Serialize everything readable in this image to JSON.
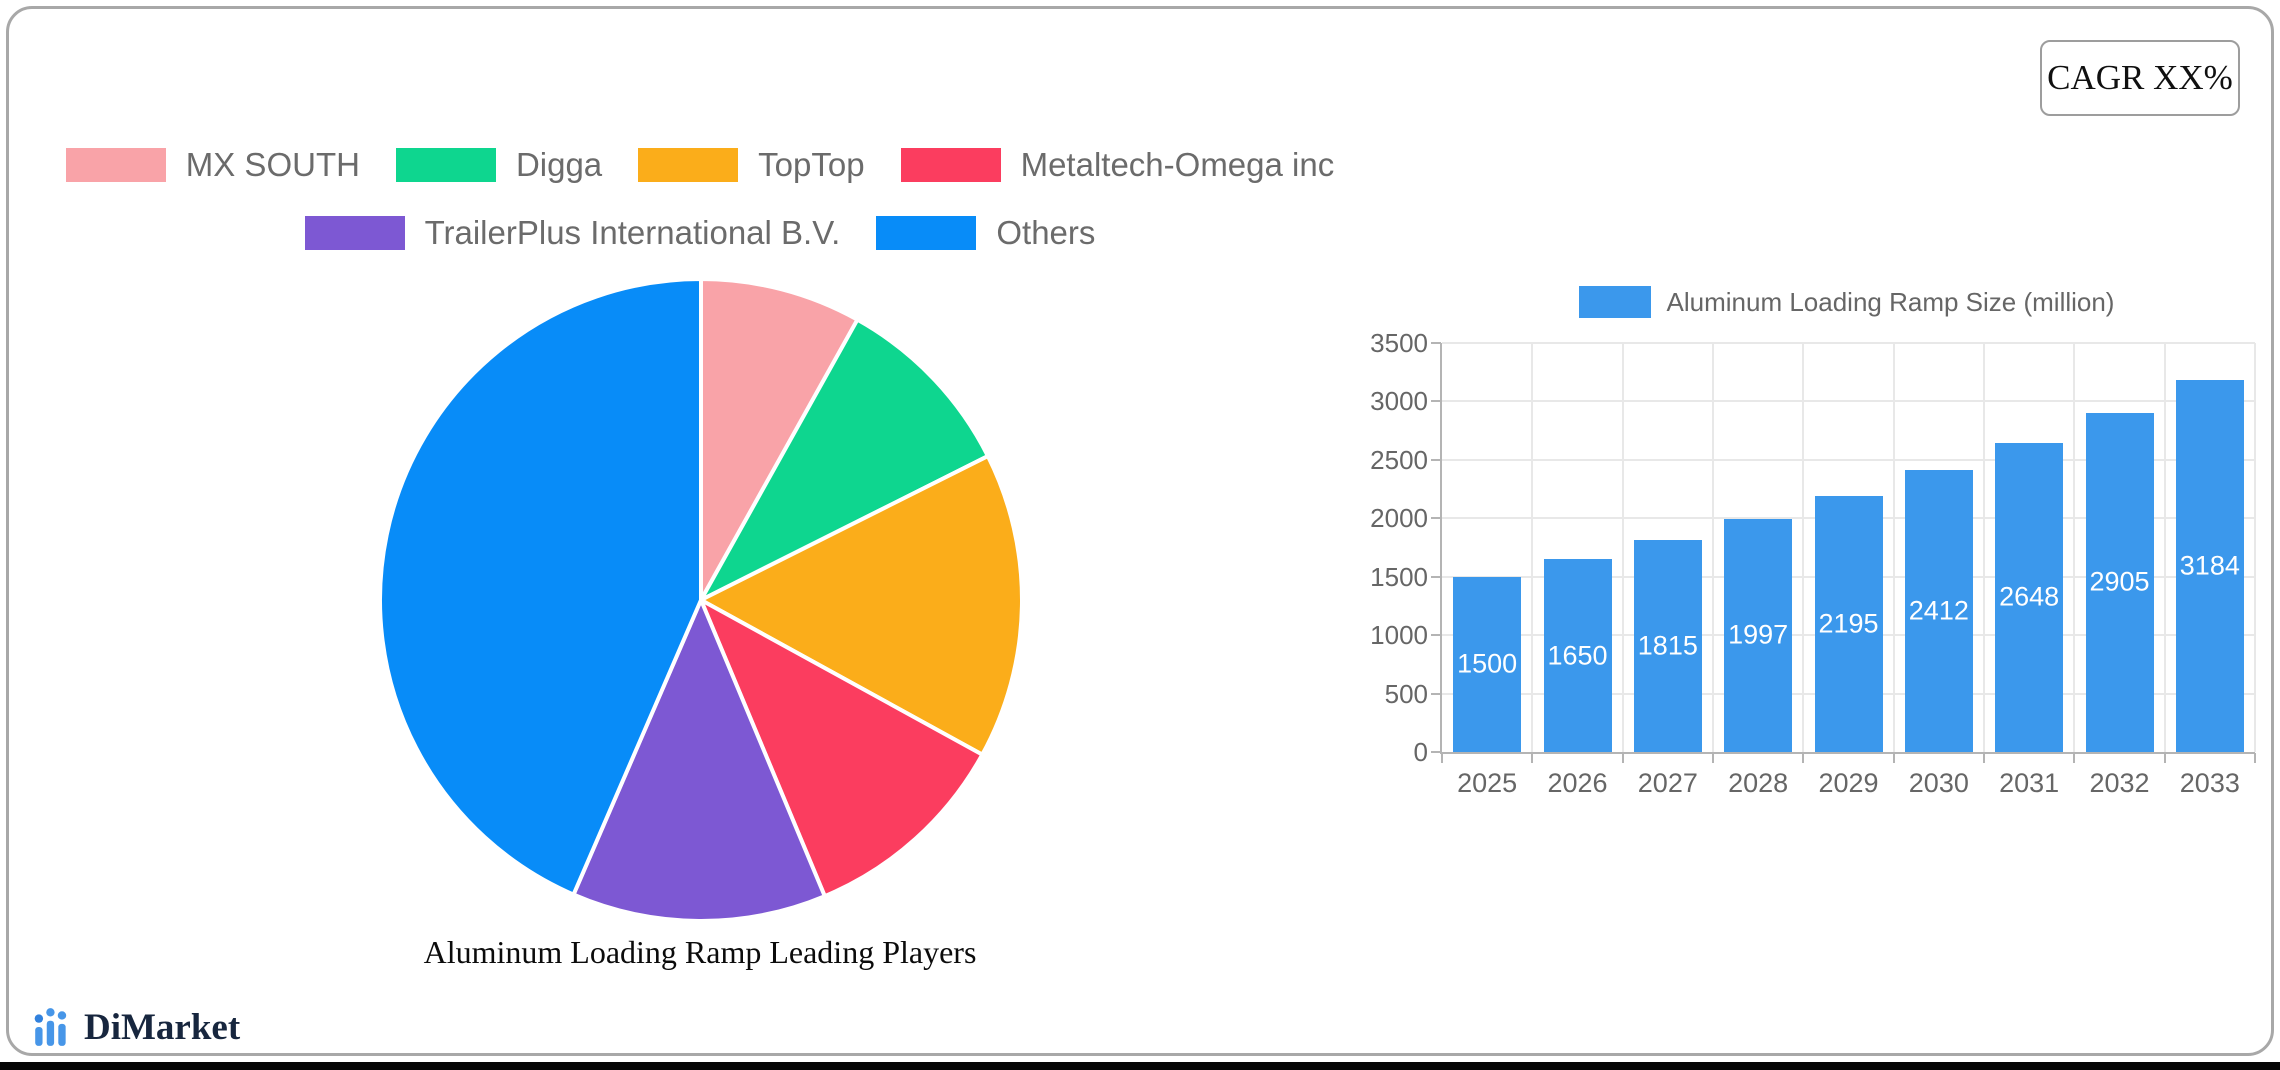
{
  "page": {
    "cagr_label": "CAGR XX%"
  },
  "branding": {
    "logo_text": "DiMarket",
    "logo_icon": "bar-chart-dots-icon"
  },
  "colors": {
    "card_border": "#a8a8a8",
    "cagr_border": "#9d9d9d",
    "grid": "#e8e8e8",
    "axis": "#b4b4b4",
    "legend_text": "#6b6b6b",
    "axis_text": "#666666",
    "bar_blue": "#3B98EC",
    "pie_pink": "#F9A3A8",
    "pie_green": "#0ED68F",
    "pie_orange": "#FBAD1A",
    "pie_red": "#FB3D5F",
    "pie_purple": "#7D58D3",
    "pie_blue": "#088CF8",
    "bottom_strip": "#060606",
    "logo_navy": "#17263e",
    "logo_blue": "#4796e8"
  },
  "chart_data": [
    {
      "type": "pie",
      "title": "Aluminum Loading Ramp Leading Players",
      "labels": [
        "MX SOUTH",
        "Digga",
        "TopTop",
        "Metaltech-Omega inc",
        "TrailerPlus International B.V.",
        "Others"
      ],
      "values": [
        8.1,
        9.5,
        15.4,
        10.7,
        12.8,
        43.5
      ],
      "colors": [
        "#F9A3A8",
        "#0ED68F",
        "#FBAD1A",
        "#FB3D5F",
        "#7D58D3",
        "#088CF8"
      ],
      "legend_position": "top",
      "legend_rows": [
        [
          0,
          1,
          2,
          3
        ],
        [
          4,
          5
        ]
      ],
      "start_angle_deg": 0,
      "direction": "clockwise",
      "slice_border_color": "#ffffff"
    },
    {
      "type": "bar",
      "series_name": "Aluminum Loading Ramp Size (million)",
      "categories": [
        "2025",
        "2026",
        "2027",
        "2028",
        "2029",
        "2030",
        "2031",
        "2032",
        "2033"
      ],
      "values": [
        1500,
        1650,
        1815,
        1997,
        2195,
        2412,
        2648,
        2905,
        3184
      ],
      "bar_color": "#3B98EC",
      "value_label_color": "#ffffff",
      "ylim": [
        0,
        3500
      ],
      "ytick_step": 500,
      "yticks": [
        0,
        500,
        1000,
        1500,
        2000,
        2500,
        3000,
        3500
      ],
      "grid": true,
      "legend_position": "top"
    }
  ]
}
